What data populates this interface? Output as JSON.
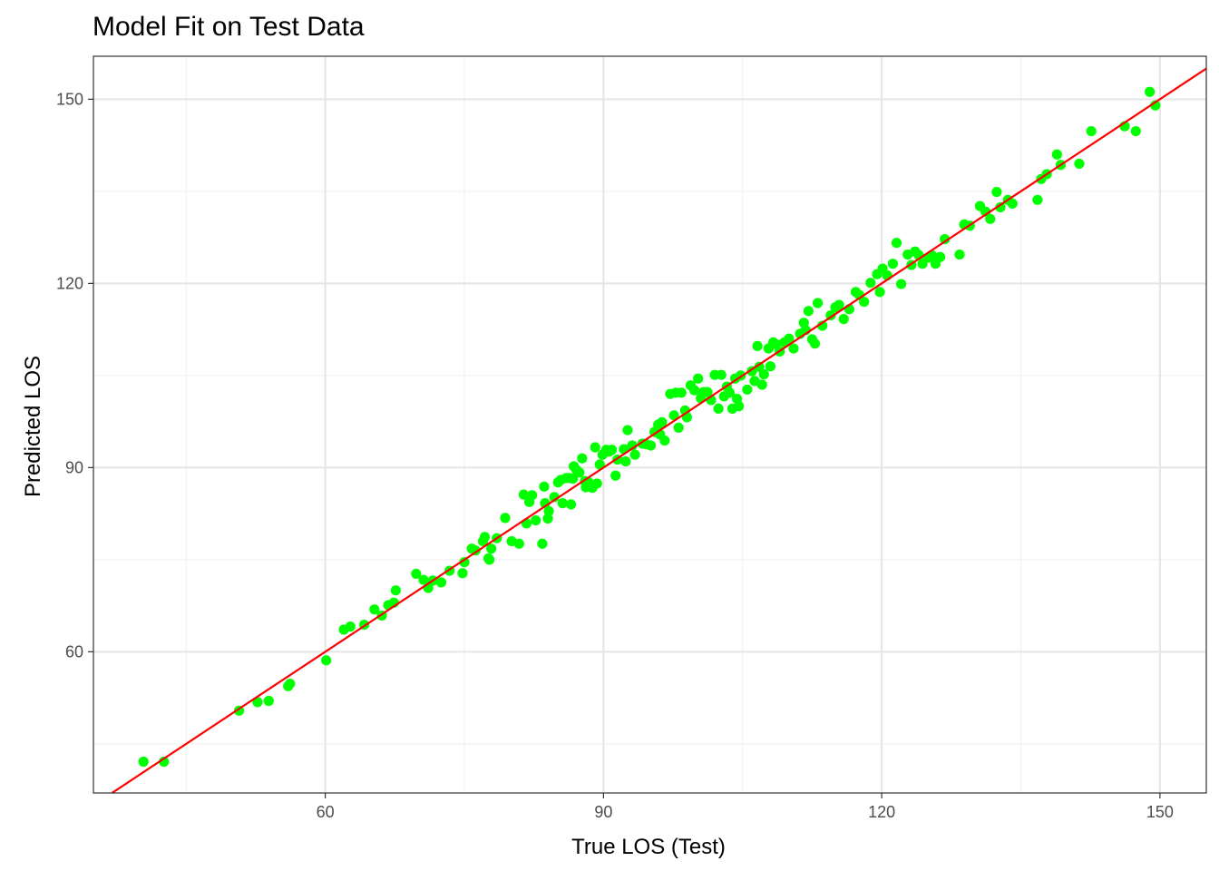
{
  "chart_data": {
    "type": "scatter",
    "title": "Model Fit on Test Data",
    "xlabel": "True LOS (Test)",
    "ylabel": "Predicted LOS",
    "xlim": [
      35,
      155
    ],
    "ylim": [
      37,
      157
    ],
    "x_ticks": [
      60,
      90,
      120,
      150
    ],
    "y_ticks": [
      60,
      90,
      120,
      150
    ],
    "x_minor": [
      45,
      75,
      105,
      135
    ],
    "y_minor": [
      45,
      75,
      105,
      135
    ],
    "grid": true,
    "point_color": "#00ff00",
    "reference_line": {
      "color": "#ff0000",
      "slope": 1,
      "intercept": 0
    },
    "series": [
      {
        "x": [
          40.4,
          42.6,
          50.7,
          52.7,
          53.9,
          56.0,
          56.2,
          60.1,
          62.0,
          62.7,
          64.2,
          65.3,
          66.1,
          66.8,
          67.4,
          67.6,
          69.8,
          70.6,
          71.1,
          71.6,
          72.5,
          73.4,
          74.8,
          75.0,
          75.8,
          76.2,
          77.0,
          77.2,
          77.6,
          77.7,
          77.9,
          78.5,
          79.4,
          80.1,
          80.9,
          81.4,
          81.7,
          82.0,
          82.3,
          82.7,
          83.4,
          83.6,
          83.7,
          84.0,
          84.1,
          84.7,
          85.1,
          85.4,
          85.6,
          86.0,
          86.3,
          86.5,
          86.7,
          86.8,
          87.1,
          87.4,
          87.7,
          88.0,
          88.1,
          88.4,
          88.8,
          89.1,
          89.3,
          89.6,
          89.9,
          90.3,
          90.6,
          90.9,
          91.3,
          91.5,
          92.2,
          92.4,
          92.6,
          93.1,
          93.4,
          94.2,
          94.6,
          95.1,
          95.5,
          95.9,
          96.1,
          96.3,
          96.6,
          97.2,
          97.6,
          97.8,
          98.1,
          98.4,
          98.8,
          99.0,
          99.4,
          99.8,
          100.2,
          100.5,
          100.8,
          101.2,
          101.6,
          102.0,
          102.4,
          102.7,
          103.0,
          103.3,
          103.6,
          103.9,
          104.2,
          104.4,
          104.6,
          104.8,
          105.5,
          106.0,
          106.3,
          106.6,
          106.8,
          107.1,
          107.3,
          107.8,
          108.0,
          108.3,
          108.6,
          109.0,
          109.5,
          110.0,
          110.5,
          111.2,
          111.6,
          111.8,
          112.1,
          112.5,
          112.8,
          113.1,
          113.6,
          114.5,
          115.0,
          115.4,
          115.9,
          116.5,
          117.2,
          117.6,
          118.1,
          118.8,
          119.5,
          119.8,
          120.1,
          120.6,
          121.2,
          121.6,
          122.1,
          122.8,
          123.2,
          123.6,
          124.0,
          124.4,
          125.0,
          125.4,
          125.8,
          126.3,
          126.8,
          128.4,
          128.9,
          129.5,
          130.6,
          131.2,
          131.7,
          132.4,
          132.8,
          133.6,
          134.1,
          136.8,
          137.2,
          137.8,
          138.9,
          139.3,
          141.3,
          142.6,
          146.2,
          147.4,
          148.9,
          149.5
        ],
        "y": [
          42.1,
          42.1,
          50.4,
          51.8,
          52.0,
          54.4,
          54.8,
          58.6,
          63.6,
          64.1,
          64.4,
          66.9,
          65.9,
          67.6,
          68.0,
          70.0,
          72.7,
          71.7,
          70.4,
          71.6,
          71.3,
          73.2,
          72.8,
          74.6,
          76.8,
          76.5,
          78.0,
          78.7,
          75.2,
          75.0,
          76.8,
          78.5,
          81.8,
          78.0,
          77.6,
          85.6,
          80.9,
          84.4,
          85.5,
          81.4,
          77.6,
          86.9,
          84.2,
          81.7,
          82.9,
          85.2,
          87.6,
          88.0,
          84.2,
          88.3,
          88.3,
          84.0,
          88.2,
          90.2,
          89.6,
          89.2,
          91.5,
          87.8,
          86.8,
          87.6,
          86.7,
          93.3,
          87.4,
          90.5,
          92.1,
          92.9,
          92.6,
          92.9,
          88.7,
          91.3,
          93.0,
          91.0,
          96.1,
          93.6,
          92.1,
          93.9,
          93.8,
          93.6,
          95.8,
          97.0,
          95.4,
          97.4,
          94.4,
          102.0,
          98.5,
          102.2,
          96.5,
          102.2,
          99.3,
          98.2,
          103.4,
          102.6,
          104.5,
          101.3,
          102.3,
          102.3,
          101.0,
          105.1,
          99.6,
          105.1,
          101.6,
          103.2,
          102.2,
          99.6,
          104.5,
          101.2,
          100.0,
          105.0,
          102.7,
          105.7,
          104.1,
          109.8,
          106.4,
          103.5,
          105.2,
          109.4,
          106.5,
          110.4,
          110.1,
          108.9,
          110.4,
          111.0,
          109.4,
          111.8,
          113.6,
          112.4,
          115.5,
          110.9,
          110.2,
          116.8,
          113.1,
          114.8,
          116.1,
          116.5,
          114.2,
          115.8,
          118.6,
          118.1,
          117.0,
          120.1,
          121.5,
          118.6,
          122.4,
          121.3,
          123.2,
          126.6,
          119.9,
          124.7,
          123.0,
          125.2,
          124.6,
          123.2,
          124.2,
          124.6,
          123.2,
          124.3,
          127.2,
          124.7,
          129.6,
          129.4,
          132.6,
          131.7,
          130.5,
          134.9,
          132.4,
          133.6,
          133.0,
          133.6,
          137.0,
          137.8,
          141.0,
          139.3,
          139.5,
          144.8,
          145.6,
          144.8,
          151.2,
          149.0
        ]
      }
    ]
  }
}
